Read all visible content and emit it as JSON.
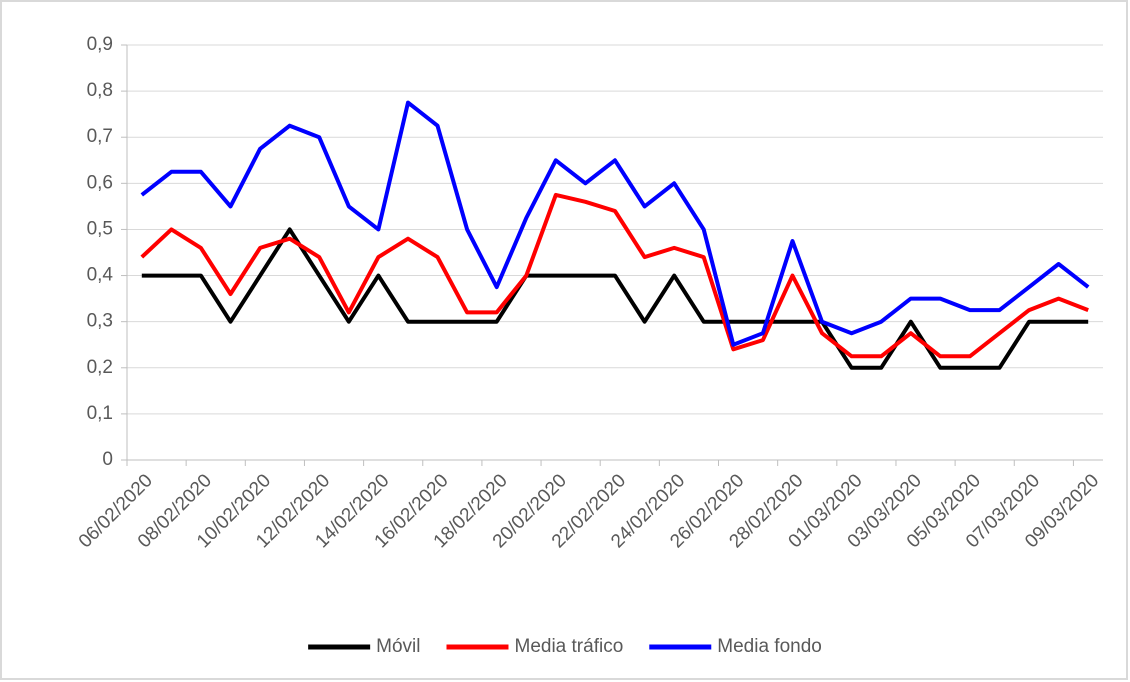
{
  "chart_data": {
    "type": "line",
    "categories": [
      "06/02/2020",
      null,
      "08/02/2020",
      null,
      "10/02/2020",
      null,
      "12/02/2020",
      null,
      "14/02/2020",
      null,
      "16/02/2020",
      null,
      "18/02/2020",
      null,
      "20/02/2020",
      null,
      "22/02/2020",
      null,
      "24/02/2020",
      null,
      "26/02/2020",
      null,
      "28/02/2020",
      null,
      "01/03/2020",
      null,
      "03/03/2020",
      null,
      "05/03/2020",
      null,
      "07/03/2020",
      null,
      "09/03/2020"
    ],
    "series": [
      {
        "name": "Móvil",
        "color": "#000000",
        "values": [
          0.4,
          0.4,
          0.4,
          0.3,
          0.4,
          0.5,
          0.4,
          0.3,
          0.4,
          0.3,
          0.3,
          0.3,
          0.3,
          0.4,
          0.4,
          0.4,
          0.4,
          0.3,
          0.4,
          0.3,
          0.3,
          0.3,
          0.3,
          0.3,
          0.2,
          0.2,
          0.3,
          0.2,
          0.2,
          0.2,
          0.3,
          0.3,
          0.3
        ]
      },
      {
        "name": "Media tráfico",
        "color": "#ff0000",
        "values": [
          0.44,
          0.5,
          0.46,
          0.36,
          0.46,
          0.48,
          0.44,
          0.32,
          0.44,
          0.48,
          0.44,
          0.32,
          0.32,
          0.4,
          0.575,
          0.56,
          0.54,
          0.44,
          0.46,
          0.44,
          0.24,
          0.26,
          0.4,
          0.275,
          0.225,
          0.225,
          0.275,
          0.225,
          0.225,
          0.275,
          0.325,
          0.35,
          0.325
        ]
      },
      {
        "name": "Media fondo",
        "color": "#0000ff",
        "values": [
          0.575,
          0.625,
          0.625,
          0.55,
          0.675,
          0.725,
          0.7,
          0.55,
          0.5,
          0.775,
          0.725,
          0.5,
          0.375,
          0.525,
          0.65,
          0.6,
          0.65,
          0.55,
          0.6,
          0.5,
          0.25,
          0.275,
          0.475,
          0.3,
          0.275,
          0.3,
          0.35,
          0.35,
          0.325,
          0.325,
          0.375,
          0.425,
          0.375
        ]
      }
    ],
    "ylim": [
      0,
      0.9
    ],
    "yticks": [
      0,
      {
        "value": 0.1,
        "label": "0,1"
      },
      {
        "value": 0.2,
        "label": "0,2"
      },
      {
        "value": 0.3,
        "label": "0,3"
      },
      {
        "value": 0.4,
        "label": "0,4"
      },
      {
        "value": 0.5,
        "label": "0,5"
      },
      {
        "value": 0.6,
        "label": "0,6"
      },
      {
        "value": 0.7,
        "label": "0,7"
      },
      {
        "value": 0.8,
        "label": "0,8"
      },
      {
        "value": 0.9,
        "label": "0,9"
      }
    ],
    "grid": true,
    "legend": "bottom"
  }
}
